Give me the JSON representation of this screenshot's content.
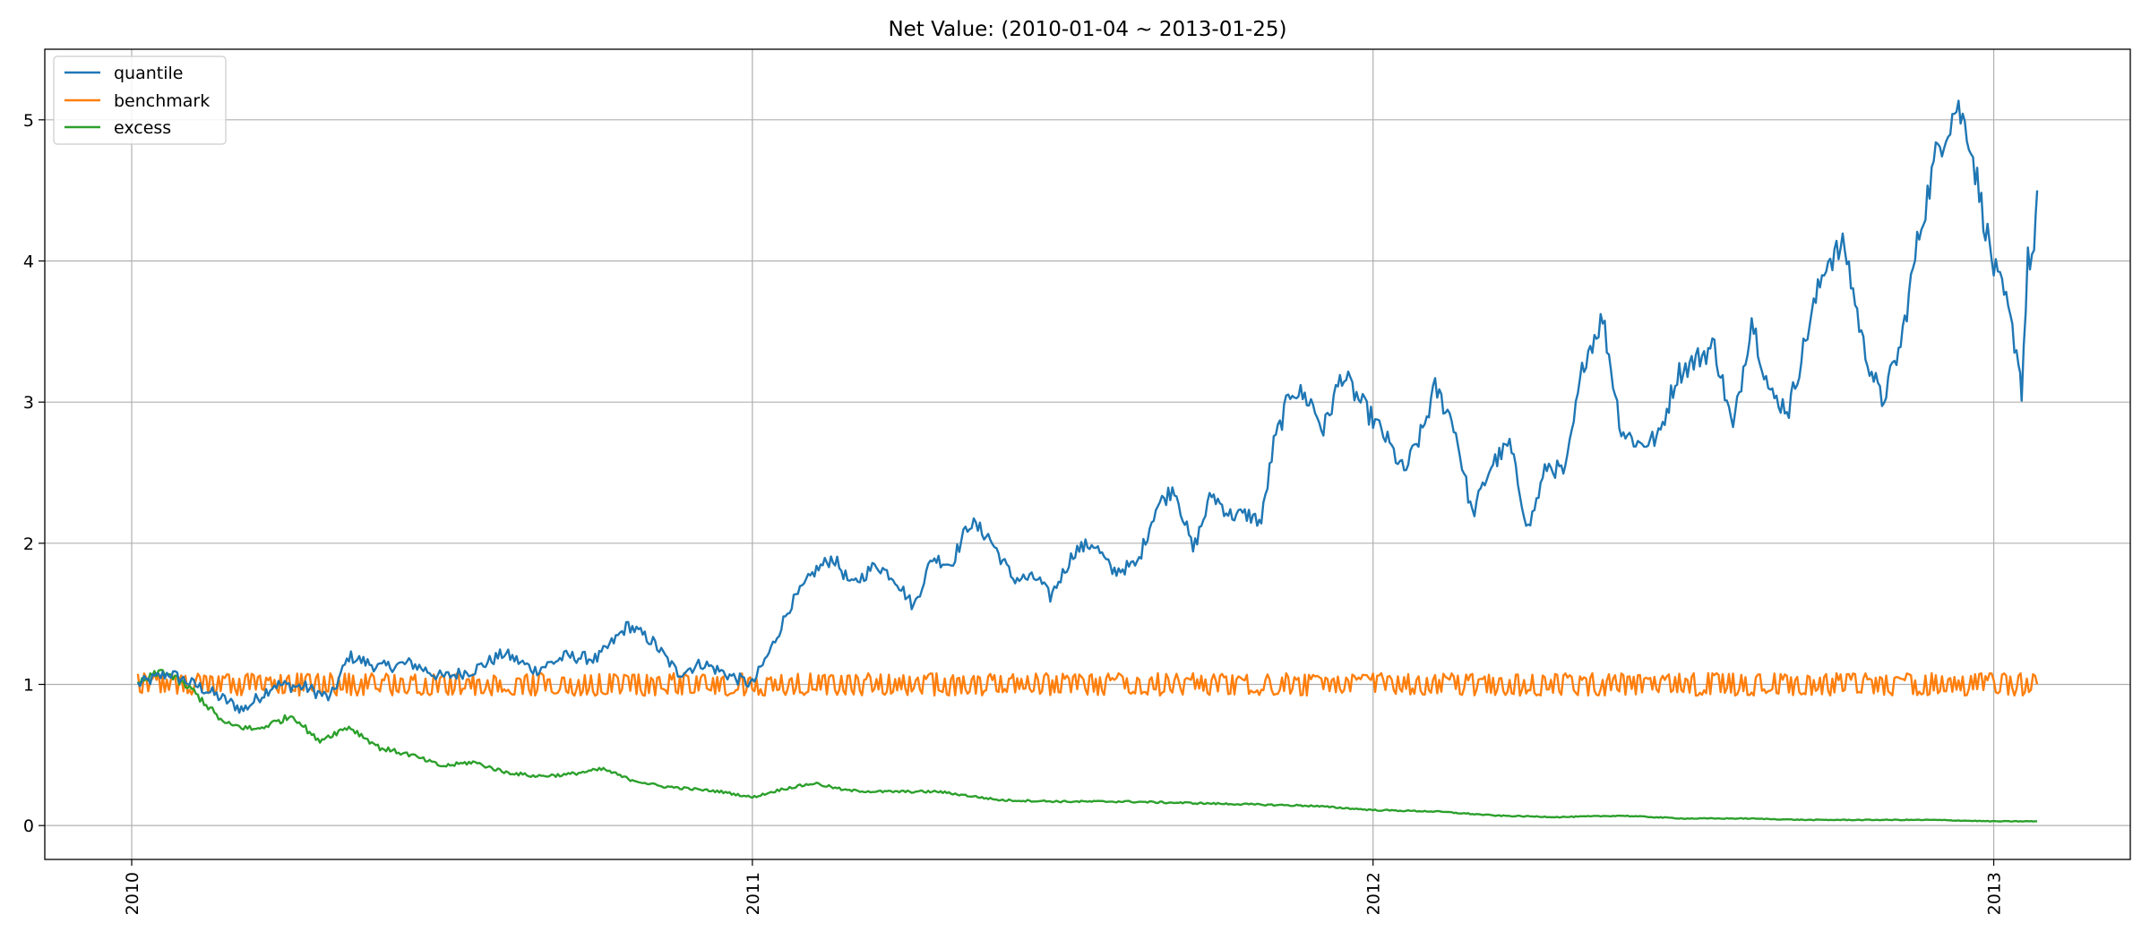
{
  "chart_data": {
    "type": "line",
    "title": "Net Value: (2010-01-04 ~ 2013-01-25)",
    "xlabel": "",
    "ylabel": "",
    "x_start": "2010-01-04",
    "x_end": "2013-01-25",
    "xlim": [
      2009.86,
      2013.22
    ],
    "ylim": [
      -0.24,
      5.5
    ],
    "grid": true,
    "legend_location": "top-left",
    "x_ticks": [
      {
        "value": 2010,
        "label": "2010"
      },
      {
        "value": 2011,
        "label": "2011"
      },
      {
        "value": 2012,
        "label": "2012"
      },
      {
        "value": 2013,
        "label": "2013"
      }
    ],
    "y_ticks": [
      {
        "value": 0,
        "label": "0"
      },
      {
        "value": 1,
        "label": "1"
      },
      {
        "value": 2,
        "label": "2"
      },
      {
        "value": 3,
        "label": "3"
      },
      {
        "value": 4,
        "label": "4"
      },
      {
        "value": 5,
        "label": "5"
      }
    ],
    "series": [
      {
        "name": "quantile",
        "color": "#1f77b4",
        "anchors": [
          [
            2010.01,
            1.0
          ],
          [
            2010.06,
            1.08
          ],
          [
            2010.12,
            0.96
          ],
          [
            2010.18,
            0.82
          ],
          [
            2010.23,
            1.0
          ],
          [
            2010.28,
            0.98
          ],
          [
            2010.32,
            0.9
          ],
          [
            2010.35,
            1.2
          ],
          [
            2010.4,
            1.12
          ],
          [
            2010.45,
            1.15
          ],
          [
            2010.5,
            1.05
          ],
          [
            2010.55,
            1.1
          ],
          [
            2010.6,
            1.22
          ],
          [
            2010.65,
            1.1
          ],
          [
            2010.7,
            1.2
          ],
          [
            2010.75,
            1.18
          ],
          [
            2010.8,
            1.42
          ],
          [
            2010.84,
            1.3
          ],
          [
            2010.88,
            1.08
          ],
          [
            2010.92,
            1.15
          ],
          [
            2010.97,
            1.05
          ],
          [
            2011.0,
            1.0
          ],
          [
            2011.03,
            1.25
          ],
          [
            2011.06,
            1.55
          ],
          [
            2011.1,
            1.8
          ],
          [
            2011.13,
            1.9
          ],
          [
            2011.16,
            1.7
          ],
          [
            2011.2,
            1.85
          ],
          [
            2011.23,
            1.75
          ],
          [
            2011.26,
            1.55
          ],
          [
            2011.29,
            1.9
          ],
          [
            2011.32,
            1.85
          ],
          [
            2011.35,
            2.15
          ],
          [
            2011.38,
            2.05
          ],
          [
            2011.42,
            1.75
          ],
          [
            2011.46,
            1.75
          ],
          [
            2011.48,
            1.62
          ],
          [
            2011.52,
            1.95
          ],
          [
            2011.55,
            2.0
          ],
          [
            2011.58,
            1.8
          ],
          [
            2011.62,
            1.85
          ],
          [
            2011.65,
            2.25
          ],
          [
            2011.68,
            2.4
          ],
          [
            2011.71,
            1.95
          ],
          [
            2011.74,
            2.35
          ],
          [
            2011.77,
            2.2
          ],
          [
            2011.8,
            2.2
          ],
          [
            2011.82,
            2.15
          ],
          [
            2011.84,
            2.7
          ],
          [
            2011.87,
            3.1
          ],
          [
            2011.9,
            3.0
          ],
          [
            2011.92,
            2.8
          ],
          [
            2011.95,
            3.2
          ],
          [
            2011.98,
            3.0
          ],
          [
            2012.02,
            2.75
          ],
          [
            2012.05,
            2.5
          ],
          [
            2012.08,
            2.8
          ],
          [
            2012.1,
            3.1
          ],
          [
            2012.13,
            2.85
          ],
          [
            2012.16,
            2.2
          ],
          [
            2012.19,
            2.55
          ],
          [
            2012.22,
            2.7
          ],
          [
            2012.25,
            2.1
          ],
          [
            2012.28,
            2.55
          ],
          [
            2012.31,
            2.5
          ],
          [
            2012.34,
            3.3
          ],
          [
            2012.37,
            3.6
          ],
          [
            2012.4,
            2.8
          ],
          [
            2012.43,
            2.7
          ],
          [
            2012.46,
            2.75
          ],
          [
            2012.49,
            3.2
          ],
          [
            2012.52,
            3.3
          ],
          [
            2012.55,
            3.4
          ],
          [
            2012.58,
            2.8
          ],
          [
            2012.61,
            3.6
          ],
          [
            2012.64,
            3.05
          ],
          [
            2012.67,
            2.95
          ],
          [
            2012.7,
            3.5
          ],
          [
            2012.73,
            4.0
          ],
          [
            2012.76,
            4.1
          ],
          [
            2012.79,
            3.4
          ],
          [
            2012.82,
            3.0
          ],
          [
            2012.85,
            3.4
          ],
          [
            2012.88,
            4.2
          ],
          [
            2012.91,
            4.8
          ],
          [
            2012.94,
            5.1
          ],
          [
            2012.96,
            4.9
          ],
          [
            2012.98,
            4.4
          ],
          [
            2013.0,
            3.95
          ],
          [
            2013.02,
            3.7
          ],
          [
            2013.04,
            3.3
          ],
          [
            2013.045,
            3.08
          ],
          [
            2013.055,
            4.0
          ],
          [
            2013.065,
            4.05
          ],
          [
            2013.07,
            4.5
          ]
        ]
      },
      {
        "name": "benchmark",
        "color": "#ff7f0e",
        "anchors": [
          [
            2010.01,
            1.0
          ],
          [
            2010.5,
            1.0
          ],
          [
            2011.0,
            1.0
          ],
          [
            2011.5,
            1.0
          ],
          [
            2012.0,
            1.0
          ],
          [
            2012.5,
            1.0
          ],
          [
            2013.0,
            1.0
          ],
          [
            2013.07,
            1.0
          ]
        ],
        "noise_amplitude": 0.08
      },
      {
        "name": "excess",
        "color": "#2ca02c",
        "anchors": [
          [
            2010.01,
            1.0
          ],
          [
            2010.05,
            1.1
          ],
          [
            2010.1,
            0.95
          ],
          [
            2010.15,
            0.72
          ],
          [
            2010.2,
            0.68
          ],
          [
            2010.26,
            0.78
          ],
          [
            2010.3,
            0.6
          ],
          [
            2010.35,
            0.7
          ],
          [
            2010.4,
            0.55
          ],
          [
            2010.45,
            0.5
          ],
          [
            2010.5,
            0.42
          ],
          [
            2010.55,
            0.45
          ],
          [
            2010.6,
            0.38
          ],
          [
            2010.65,
            0.35
          ],
          [
            2010.7,
            0.36
          ],
          [
            2010.76,
            0.4
          ],
          [
            2010.8,
            0.33
          ],
          [
            2010.85,
            0.28
          ],
          [
            2010.9,
            0.26
          ],
          [
            2010.95,
            0.24
          ],
          [
            2011.0,
            0.2
          ],
          [
            2011.05,
            0.26
          ],
          [
            2011.1,
            0.3
          ],
          [
            2011.15,
            0.25
          ],
          [
            2011.2,
            0.24
          ],
          [
            2011.3,
            0.24
          ],
          [
            2011.4,
            0.18
          ],
          [
            2011.5,
            0.17
          ],
          [
            2011.6,
            0.17
          ],
          [
            2011.7,
            0.16
          ],
          [
            2011.8,
            0.15
          ],
          [
            2011.9,
            0.14
          ],
          [
            2012.0,
            0.11
          ],
          [
            2012.1,
            0.1
          ],
          [
            2012.2,
            0.07
          ],
          [
            2012.3,
            0.06
          ],
          [
            2012.4,
            0.07
          ],
          [
            2012.5,
            0.05
          ],
          [
            2012.6,
            0.05
          ],
          [
            2012.7,
            0.04
          ],
          [
            2012.8,
            0.04
          ],
          [
            2012.9,
            0.04
          ],
          [
            2013.0,
            0.03
          ],
          [
            2013.07,
            0.03
          ]
        ]
      }
    ]
  }
}
